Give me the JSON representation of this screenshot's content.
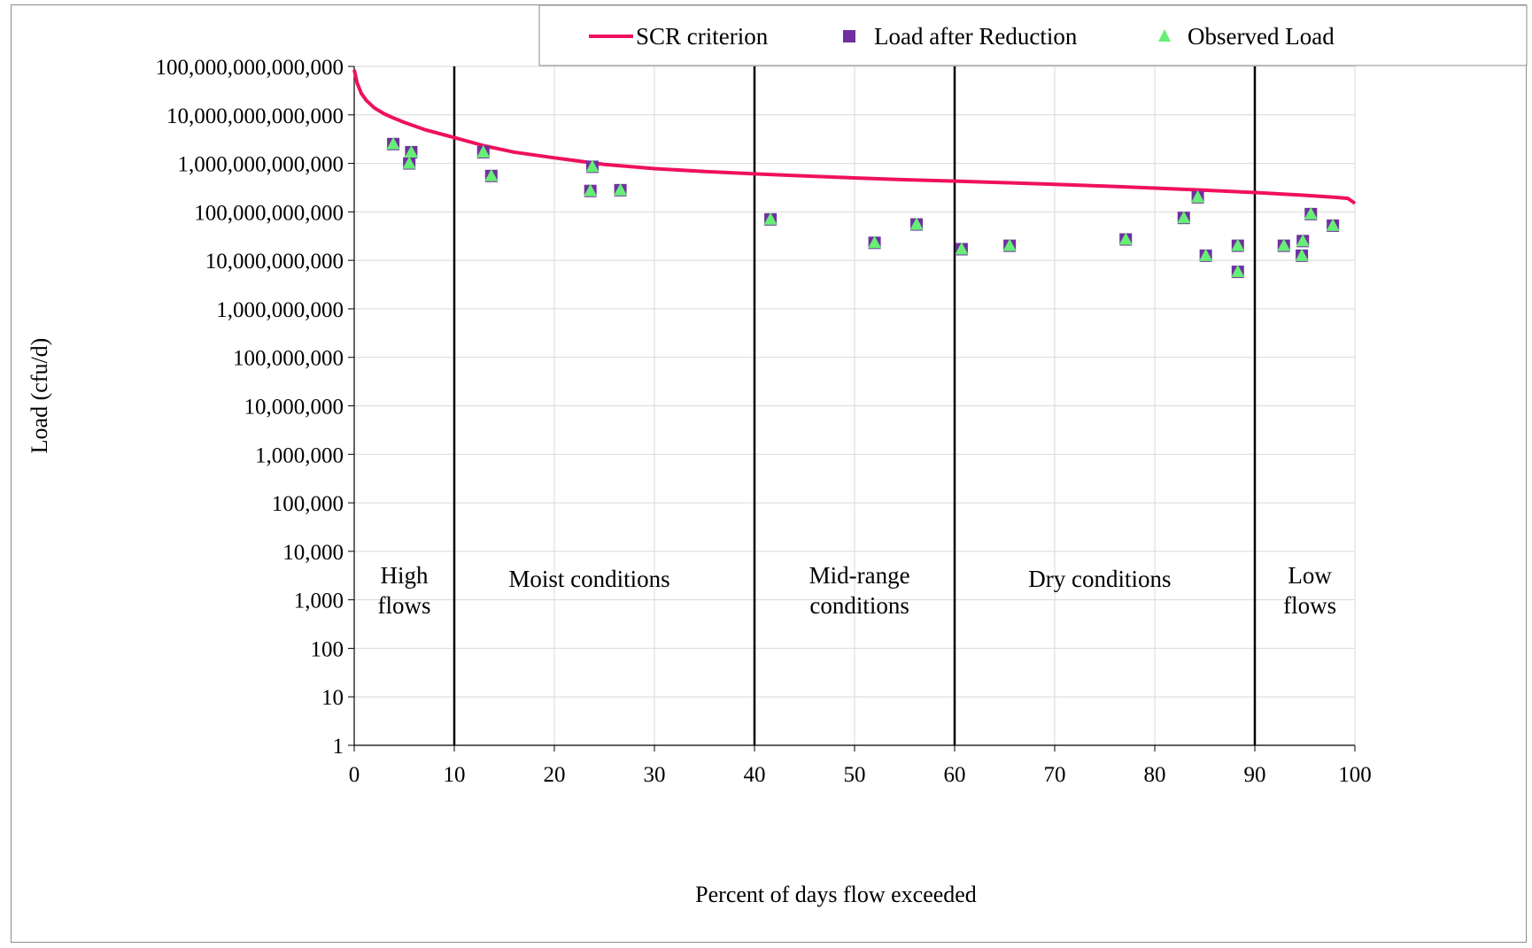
{
  "chart_data": {
    "type": "scatter",
    "xlabel": "Percent of days flow exceeded",
    "ylabel": "Load (cfu/d)",
    "xlim": [
      0,
      100
    ],
    "ylim": [
      1,
      100000000000000
    ],
    "yscale": "log",
    "grid": true,
    "x_ticks": [
      0,
      10,
      20,
      30,
      40,
      50,
      60,
      70,
      80,
      90,
      100
    ],
    "x_tick_labels": [
      "0",
      "10",
      "20",
      "30",
      "40",
      "50",
      "60",
      "70",
      "80",
      "90",
      "100"
    ],
    "y_ticks": [
      1,
      10,
      100,
      1000,
      10000,
      100000,
      1000000,
      10000000,
      100000000,
      1000000000,
      10000000000,
      100000000000,
      1000000000000,
      10000000000000,
      100000000000000
    ],
    "y_tick_labels": [
      "1",
      "10",
      "100",
      "1,000",
      "10,000",
      "100,000",
      "1,000,000",
      "10,000,000",
      "100,000,000",
      "1,000,000,000",
      "10,000,000,000",
      "100,000,000,000",
      "1,000,000,000,000",
      "10,000,000,000,000",
      "100,000,000,000,000"
    ],
    "legend": {
      "position": "top-right",
      "entries": [
        "SCR criterion",
        "Load after Reduction",
        "Observed Load"
      ]
    },
    "colors": {
      "criterion": "#f0105f",
      "reduction": "#7030a0",
      "observed": "#66ee77",
      "divider": "#000000",
      "grid": "#d9d9d9"
    },
    "region_dividers": [
      10,
      40,
      60,
      90
    ],
    "regions": [
      {
        "lines": [
          "High",
          "flows"
        ],
        "x": 5
      },
      {
        "lines": [
          "Moist conditions"
        ],
        "x": 23.5
      },
      {
        "lines": [
          "Mid-range",
          "conditions"
        ],
        "x": 50.5
      },
      {
        "lines": [
          "Dry conditions"
        ],
        "x": 74.5
      },
      {
        "lines": [
          "Low",
          "flows"
        ],
        "x": 95.5
      }
    ],
    "series": [
      {
        "name": "SCR criterion",
        "style": "line",
        "x": [
          0,
          0.3,
          0.7,
          1.2,
          2,
          3,
          4,
          5,
          7,
          10,
          13,
          16,
          20,
          25,
          30,
          35,
          40,
          45,
          50,
          55,
          60,
          65,
          70,
          75,
          80,
          85,
          90,
          95,
          98,
          99.3,
          100
        ],
        "y": [
          85000000000000,
          45000000000000,
          28000000000000,
          20000000000000,
          14000000000000,
          10500000000000,
          8500000000000,
          7000000000000,
          5000000000000,
          3400000000000,
          2300000000000,
          1700000000000,
          1300000000000,
          950000000000,
          780000000000,
          680000000000,
          610000000000,
          550000000000,
          500000000000,
          460000000000,
          430000000000,
          400000000000,
          370000000000,
          340000000000,
          310000000000,
          280000000000,
          250000000000,
          220000000000,
          200000000000,
          190000000000,
          150000000000
        ]
      },
      {
        "name": "Load after Reduction",
        "style": "square",
        "x": [
          3.9,
          5.5,
          5.7,
          12.9,
          13.7,
          23.6,
          23.8,
          26.6,
          41.6,
          52,
          56.2,
          60.7,
          65.5,
          77.1,
          82.9,
          84.3,
          85.1,
          88.3,
          88.3,
          92.9,
          94.7,
          94.8,
          95.6,
          97.8
        ],
        "y": [
          2500000000000,
          1000000000000,
          1700000000000,
          1700000000000,
          550000000000,
          270000000000,
          850000000000,
          280000000000,
          70000000000,
          23000000000,
          55000000000,
          17000000000,
          20000000000,
          27000000000,
          75000000000,
          200000000000,
          12500000000,
          20000000000,
          5800000000,
          20000000000,
          12500000000,
          25000000000,
          90000000000,
          52000000000
        ]
      },
      {
        "name": "Observed Load",
        "style": "triangle",
        "x": [
          3.9,
          5.5,
          5.7,
          12.9,
          13.7,
          23.6,
          23.8,
          26.6,
          41.6,
          52,
          56.2,
          60.7,
          65.5,
          77.1,
          82.9,
          84.3,
          85.1,
          88.3,
          88.3,
          92.9,
          94.7,
          94.8,
          95.6,
          97.8
        ],
        "y": [
          2500000000000,
          1000000000000,
          1700000000000,
          1700000000000,
          550000000000,
          270000000000,
          850000000000,
          280000000000,
          70000000000,
          23000000000,
          55000000000,
          17000000000,
          20000000000,
          27000000000,
          75000000000,
          200000000000,
          12500000000,
          20000000000,
          5800000000,
          20000000000,
          12500000000,
          25000000000,
          90000000000,
          52000000000
        ]
      }
    ]
  }
}
